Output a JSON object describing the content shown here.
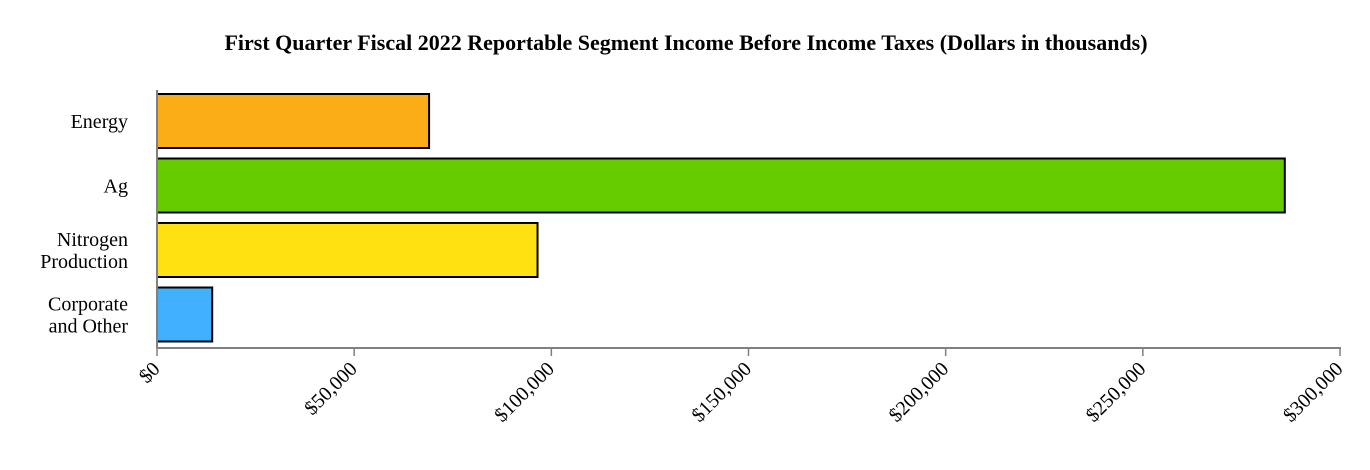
{
  "chart_data": {
    "type": "bar",
    "orientation": "horizontal",
    "title": "First Quarter Fiscal 2022 Reportable Segment Income Before Income Taxes (Dollars in thousands)",
    "xlabel": "",
    "ylabel": "",
    "categories": [
      [
        "Energy"
      ],
      [
        "Ag"
      ],
      [
        "Nitrogen",
        "Production"
      ],
      [
        "Corporate",
        "and Other"
      ]
    ],
    "values": [
      69000,
      286000,
      96500,
      14000
    ],
    "colors": [
      "#FBAD18",
      "#66CC00",
      "#FFE010",
      "#41B0FF"
    ],
    "xlim": [
      0,
      300000
    ],
    "xticks": [
      0,
      50000,
      100000,
      150000,
      200000,
      250000,
      300000
    ],
    "xtick_labels": [
      "$0",
      "$50,000",
      "$100,000",
      "$150,000",
      "$200,000",
      "$250,000",
      "$300,000"
    ],
    "grid": false,
    "legend": "none"
  }
}
